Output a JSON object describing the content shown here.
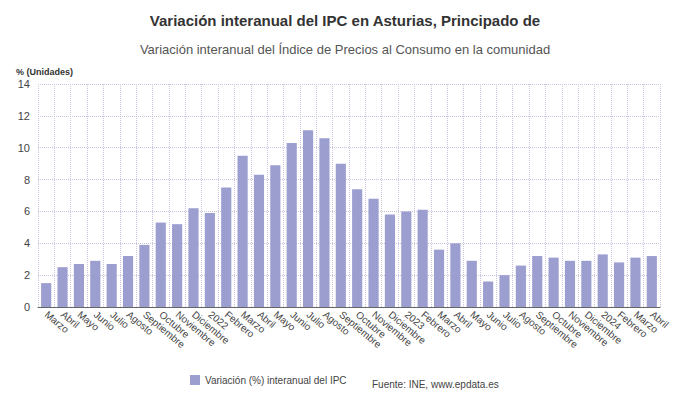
{
  "chart_data": {
    "type": "bar",
    "title": "Variación interanual del IPC en Asturias, Principado de",
    "subtitle": "Variación interanual del Índice de Precios al Consumo en la comunidad",
    "y_label": "% (Unidades)",
    "source": "Fuente: INE, www.epdata.es",
    "categories": [
      "Marzo",
      "Abril",
      "Mayo",
      "Junio",
      "Julio",
      "Agosto",
      "Septiembre",
      "Octubre",
      "Noviembre",
      "Diciembre",
      "2022",
      "Febrero",
      "Marzo",
      "Abril",
      "Mayo",
      "Junio",
      "Julio",
      "Agosto",
      "Septiembre",
      "Octubre",
      "Noviembre",
      "Diciembre",
      "2023",
      "Febrero",
      "Marzo",
      "Abril",
      "Mayo",
      "Junio",
      "Julio",
      "Agosto",
      "Septiembre",
      "Octubre",
      "Noviembre",
      "Diciembre",
      "2024",
      "Febrero",
      "Marzo",
      "Abril"
    ],
    "series": [
      {
        "name": "Variación (%) interanual del IPC",
        "color": "#9c9ecf",
        "values": [
          1.5,
          2.5,
          2.7,
          2.9,
          2.7,
          3.2,
          3.9,
          5.3,
          5.2,
          6.2,
          5.9,
          7.5,
          9.5,
          8.3,
          8.9,
          10.3,
          11.1,
          10.6,
          9.0,
          7.4,
          6.8,
          5.8,
          6.0,
          6.1,
          3.6,
          4.0,
          2.9,
          1.6,
          2.0,
          2.6,
          3.2,
          3.1,
          2.9,
          2.9,
          3.3,
          2.8,
          3.1,
          3.2
        ]
      }
    ],
    "ylim": [
      0,
      14
    ],
    "yticks": [
      0,
      2,
      4,
      6,
      8,
      10,
      12,
      14
    ],
    "grid": true,
    "legend": "bottom"
  }
}
